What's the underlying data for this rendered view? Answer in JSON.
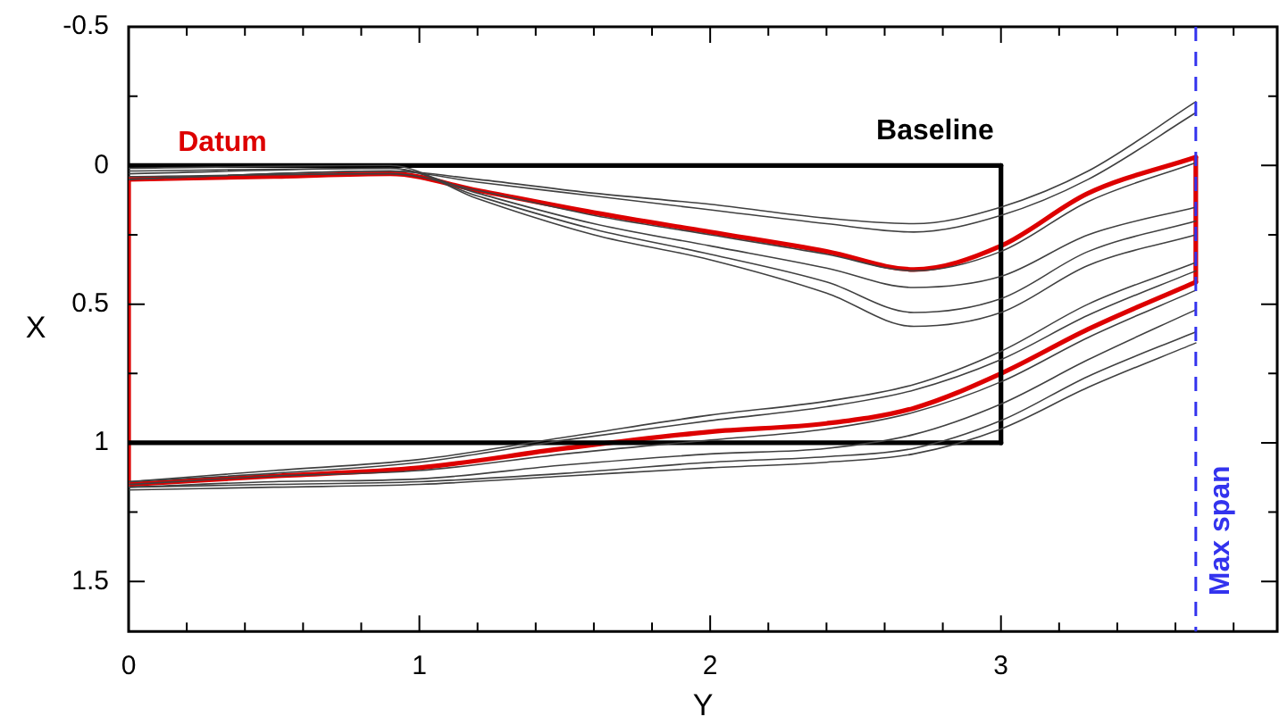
{
  "chart_data": {
    "type": "line",
    "xlabel": "Y",
    "ylabel": "X",
    "legend": false,
    "grid": false,
    "marker": "none",
    "line_style": "solid",
    "xlim": [
      0,
      3.95
    ],
    "ylim": [
      1.68,
      -0.5
    ],
    "xticks": [
      0,
      {
        "value": 0.2,
        "label": null
      },
      {
        "value": 0.4,
        "label": null
      },
      {
        "value": 0.6,
        "label": null
      },
      {
        "value": 0.8,
        "label": null
      },
      1,
      {
        "value": 1.2,
        "label": null
      },
      {
        "value": 1.4,
        "label": null
      },
      {
        "value": 1.6,
        "label": null
      },
      {
        "value": 1.8,
        "label": null
      },
      2,
      {
        "value": 2.2,
        "label": null
      },
      {
        "value": 2.4,
        "label": null
      },
      {
        "value": 2.6,
        "label": null
      },
      {
        "value": 2.8,
        "label": null
      },
      3,
      {
        "value": 3.2,
        "label": null
      },
      {
        "value": 3.4,
        "label": null
      },
      {
        "value": 3.6,
        "label": null
      },
      {
        "value": 3.8,
        "label": null
      }
    ],
    "yticks": [
      -0.5,
      {
        "value": -0.25,
        "label": null
      },
      0,
      {
        "value": 0.25,
        "label": null
      },
      0.5,
      {
        "value": 0.75,
        "label": null
      },
      1,
      {
        "value": 1.25,
        "label": null
      },
      1.5
    ],
    "ref_lines": [
      {
        "axis": "x",
        "value": 3.67,
        "label": "Max span",
        "color": "#3333ee",
        "line_style": "dashed"
      }
    ],
    "series": [
      {
        "color": "#404040",
        "x": [
          0,
          0.9,
          1.2,
          1.6,
          2.0,
          2.4,
          2.7,
          3.0,
          3.3,
          3.67
        ],
        "values": [
          0.05,
          0.02,
          0.05,
          0.1,
          0.14,
          0.19,
          0.21,
          0.15,
          0.02,
          -0.23
        ]
      },
      {
        "color": "#404040",
        "x": [
          0,
          0.9,
          1.2,
          1.6,
          2.0,
          2.4,
          2.7,
          3.0,
          3.3,
          3.67
        ],
        "values": [
          0.05,
          0.02,
          0.06,
          0.11,
          0.16,
          0.21,
          0.24,
          0.18,
          0.05,
          -0.19
        ]
      },
      {
        "color": "#404040",
        "x": [
          0,
          0.9,
          1.2,
          1.6,
          2.0,
          2.4,
          2.7,
          3.0,
          3.3,
          3.67
        ],
        "values": [
          0.04,
          0.03,
          0.09,
          0.18,
          0.25,
          0.32,
          0.38,
          0.31,
          0.13,
          -0.01
        ]
      },
      {
        "color": "#404040",
        "x": [
          0,
          0.9,
          1.2,
          1.6,
          2.0,
          2.4,
          2.7,
          3.0,
          3.3,
          3.67
        ],
        "values": [
          0.03,
          0.01,
          0.1,
          0.21,
          0.29,
          0.37,
          0.44,
          0.4,
          0.25,
          0.15
        ]
      },
      {
        "color": "#404040",
        "x": [
          0,
          0.9,
          1.2,
          1.6,
          2.0,
          2.4,
          2.7,
          3.0,
          3.3,
          3.67
        ],
        "values": [
          0.02,
          0.01,
          0.11,
          0.23,
          0.32,
          0.42,
          0.53,
          0.48,
          0.31,
          0.2
        ]
      },
      {
        "color": "#404040",
        "x": [
          0,
          0.9,
          1.2,
          1.6,
          2.0,
          2.4,
          2.7,
          3.0,
          3.3,
          3.67
        ],
        "values": [
          0.01,
          0.0,
          0.12,
          0.25,
          0.34,
          0.46,
          0.58,
          0.53,
          0.36,
          0.25
        ]
      },
      {
        "color": "#404040",
        "x": [
          0,
          0.5,
          1.0,
          1.5,
          2.0,
          2.4,
          2.7,
          3.0,
          3.3,
          3.67
        ],
        "values": [
          1.14,
          1.1,
          1.06,
          0.98,
          0.9,
          0.85,
          0.79,
          0.67,
          0.5,
          0.35
        ]
      },
      {
        "color": "#404040",
        "x": [
          0,
          0.5,
          1.0,
          1.5,
          2.0,
          2.4,
          2.7,
          3.0,
          3.3,
          3.67
        ],
        "values": [
          1.14,
          1.11,
          1.07,
          0.99,
          0.92,
          0.87,
          0.81,
          0.7,
          0.54,
          0.38
        ]
      },
      {
        "color": "#404040",
        "x": [
          0,
          0.5,
          1.0,
          1.5,
          2.0,
          2.4,
          2.7,
          3.0,
          3.3,
          3.67
        ],
        "values": [
          1.15,
          1.12,
          1.1,
          1.04,
          0.99,
          0.95,
          0.89,
          0.78,
          0.62,
          0.45
        ]
      },
      {
        "color": "#404040",
        "x": [
          0,
          0.5,
          1.0,
          1.5,
          2.0,
          2.4,
          2.7,
          3.0,
          3.3,
          3.67
        ],
        "values": [
          1.16,
          1.14,
          1.13,
          1.08,
          1.04,
          1.02,
          0.97,
          0.86,
          0.7,
          0.52
        ]
      },
      {
        "color": "#404040",
        "x": [
          0,
          0.5,
          1.0,
          1.5,
          2.0,
          2.4,
          2.7,
          3.0,
          3.3,
          3.67
        ],
        "values": [
          1.16,
          1.15,
          1.14,
          1.11,
          1.07,
          1.05,
          1.02,
          0.92,
          0.76,
          0.6
        ]
      },
      {
        "color": "#404040",
        "x": [
          0,
          0.5,
          1.0,
          1.5,
          2.0,
          2.4,
          2.7,
          3.0,
          3.3,
          3.67
        ],
        "values": [
          1.17,
          1.16,
          1.15,
          1.12,
          1.09,
          1.07,
          1.04,
          0.95,
          0.8,
          0.64
        ]
      },
      {
        "name": "Baseline",
        "color": "#000000",
        "x": [
          0,
          3
        ],
        "values": [
          0,
          0
        ]
      },
      {
        "color": "#000000",
        "x": [
          3,
          3
        ],
        "values": [
          0,
          1
        ]
      },
      {
        "color": "#000000",
        "x": [
          0,
          3
        ],
        "values": [
          1,
          1
        ]
      },
      {
        "name": "Datum",
        "color": "#dd0000",
        "x": [
          0,
          0.5,
          0.9,
          1.2,
          1.6,
          2.0,
          2.4,
          2.7,
          3.0,
          3.3,
          3.67
        ],
        "values": [
          0.05,
          0.04,
          0.03,
          0.09,
          0.17,
          0.24,
          0.31,
          0.375,
          0.29,
          0.1,
          -0.03
        ]
      },
      {
        "color": "#dd0000",
        "x": [
          3.67,
          3.67
        ],
        "values": [
          -0.03,
          0.42
        ]
      },
      {
        "color": "#dd0000",
        "x": [
          0,
          0.5,
          1.0,
          1.5,
          2.0,
          2.4,
          2.7,
          3.0,
          3.3,
          3.67
        ],
        "values": [
          1.15,
          1.12,
          1.09,
          1.02,
          0.96,
          0.93,
          0.875,
          0.75,
          0.59,
          0.42
        ]
      },
      {
        "color": "#dd0000",
        "x": [
          0,
          0
        ],
        "values": [
          0.05,
          1.15
        ]
      }
    ]
  }
}
